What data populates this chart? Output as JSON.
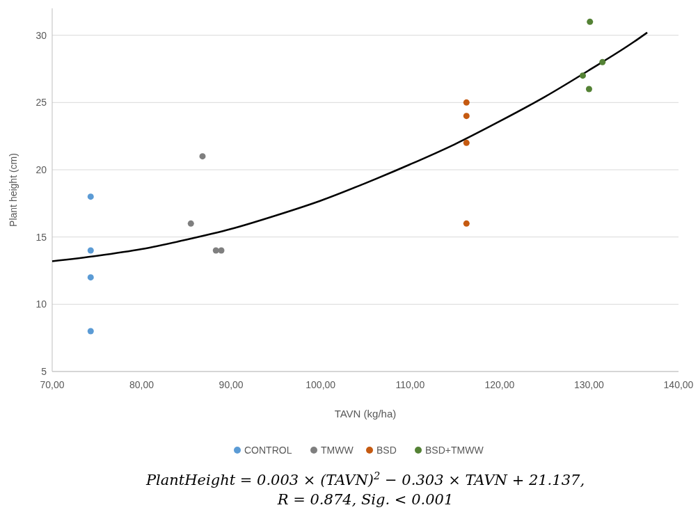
{
  "chart_data": {
    "type": "scatter",
    "xlabel": "TAVN  (kg/ha)",
    "ylabel": "Plant height (cm)",
    "xlim": [
      70,
      140
    ],
    "xticks": [
      {
        "value": 70,
        "label": "70,00"
      },
      {
        "value": 80,
        "label": "80,00"
      },
      {
        "value": 90,
        "label": "90,00"
      },
      {
        "value": 100,
        "label": "100,00"
      },
      {
        "value": 110,
        "label": "110,00"
      },
      {
        "value": 120,
        "label": "120,00"
      },
      {
        "value": 130,
        "label": "130,00"
      },
      {
        "value": 140,
        "label": "140,00"
      }
    ],
    "ylim": [
      5,
      32
    ],
    "yticks": [
      5,
      10,
      15,
      20,
      25,
      30
    ],
    "grid": "y",
    "legend": "bottom",
    "marker": "circle",
    "series": [
      {
        "name": "CONTROL",
        "color": "#5b9bd5",
        "x": [
          74.3,
          74.3,
          74.3,
          74.3
        ],
        "values": [
          18,
          14,
          12,
          8
        ]
      },
      {
        "name": "TMWW",
        "color": "#7f7f7f",
        "x": [
          85.5,
          86.8,
          88.3,
          88.9
        ],
        "values": [
          16,
          21,
          14,
          14
        ]
      },
      {
        "name": "BSD",
        "color": "#c55a11",
        "x": [
          116.3,
          116.3,
          116.3,
          116.3
        ],
        "values": [
          25,
          24,
          22,
          16
        ]
      },
      {
        "name": "BSD+TMWW",
        "color": "#548235",
        "x": [
          130.1,
          129.3,
          131.5,
          130.0
        ],
        "values": [
          31,
          27,
          28,
          26
        ]
      },
      {
        "type": "line",
        "color": "#000000",
        "marker": "none",
        "line_style": "solid",
        "x": [
          70,
          75,
          80,
          85,
          90,
          95,
          100,
          105,
          110,
          115,
          120,
          125,
          130,
          135,
          136.5
        ],
        "values": [
          13.2,
          13.6,
          14.1,
          14.8,
          15.6,
          16.6,
          17.7,
          19.0,
          20.4,
          21.9,
          23.6,
          25.4,
          27.4,
          29.5,
          30.2
        ]
      }
    ],
    "annotations": [
      "PlantHeight = 0.003 × (TAVN)$^{2}$ − 0.303 × TAVN + 21.137,",
      "R = 0.874,        Sig. < 0.001"
    ]
  }
}
